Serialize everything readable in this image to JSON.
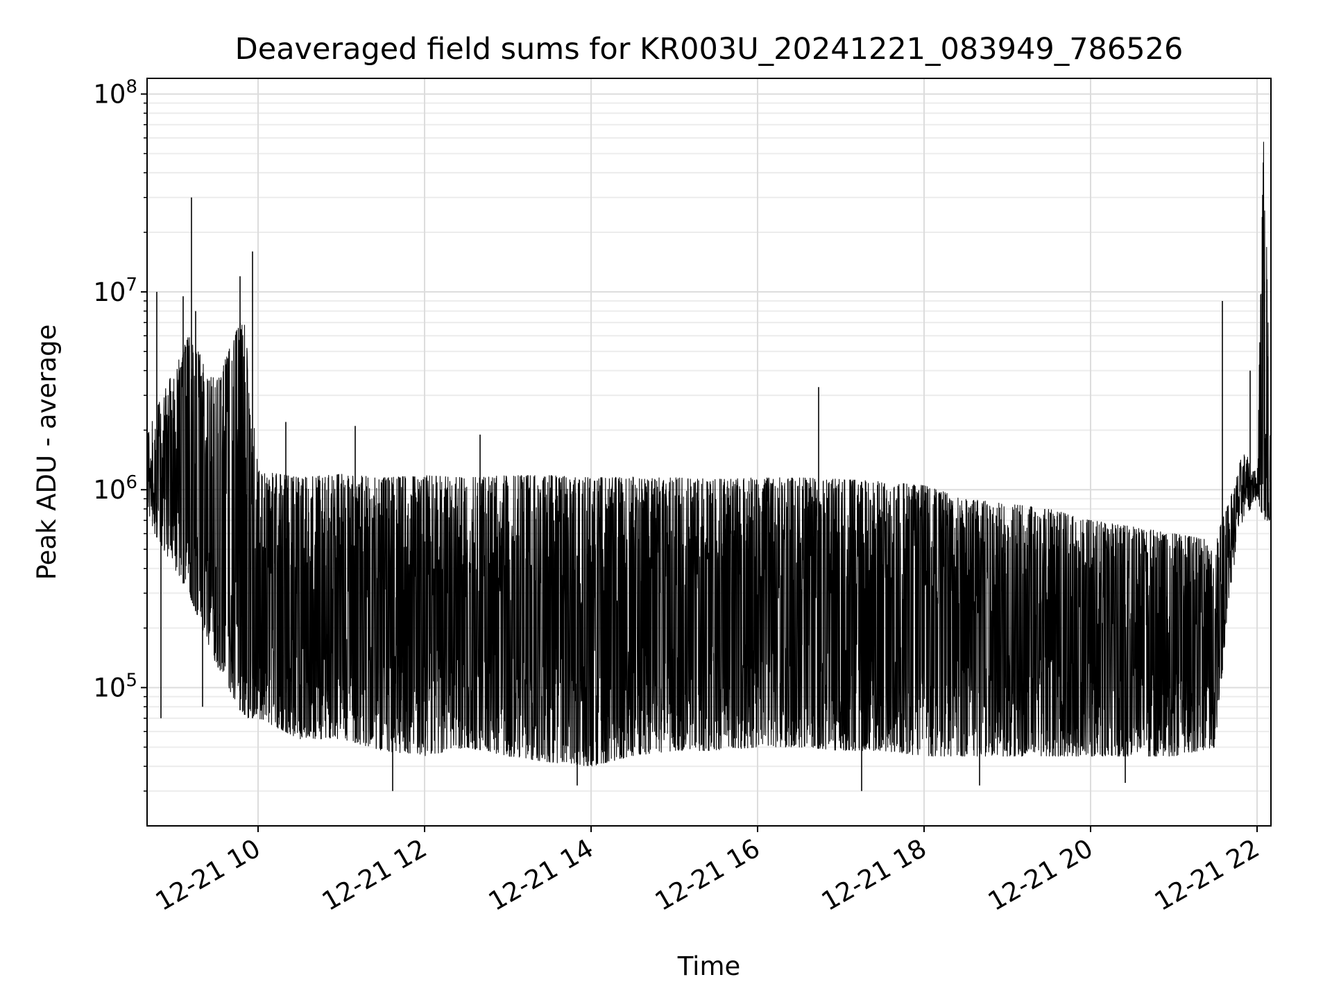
{
  "chart_data": {
    "type": "line",
    "title": "Deaveraged field sums for KR003U_20241221_083949_786526",
    "xlabel": "Time",
    "ylabel": "Peak ADU - average",
    "x_scale": "time",
    "y_scale": "log",
    "xlim": [
      "2024-12-21 08:40",
      "2024-12-21 22:10"
    ],
    "ylim": [
      20000,
      120000000
    ],
    "x_ticks": [
      {
        "label": "12-21 10",
        "value": "2024-12-21 10:00"
      },
      {
        "label": "12-21 12",
        "value": "2024-12-21 12:00"
      },
      {
        "label": "12-21 14",
        "value": "2024-12-21 14:00"
      },
      {
        "label": "12-21 16",
        "value": "2024-12-21 16:00"
      },
      {
        "label": "12-21 18",
        "value": "2024-12-21 18:00"
      },
      {
        "label": "12-21 20",
        "value": "2024-12-21 20:00"
      },
      {
        "label": "12-21 22",
        "value": "2024-12-21 22:00"
      }
    ],
    "y_ticks": [
      {
        "base": "10",
        "exp": "5",
        "value": 100000
      },
      {
        "base": "10",
        "exp": "6",
        "value": 1000000
      },
      {
        "base": "10",
        "exp": "7",
        "value": 10000000
      },
      {
        "base": "10",
        "exp": "8",
        "value": 100000000
      }
    ],
    "grid": true,
    "minor_grid": true,
    "line_color": "#000000",
    "series": [
      {
        "envelope_x": [
          "08:40",
          "09:10",
          "09:30",
          "09:50",
          "10:00",
          "10:30",
          "11:00",
          "11:30",
          "12:00",
          "12:30",
          "13:00",
          "13:30",
          "14:00",
          "14:30",
          "15:00",
          "15:30",
          "16:00",
          "16:30",
          "17:00",
          "17:30",
          "18:00",
          "18:30",
          "19:00",
          "19:30",
          "20:00",
          "20:30",
          "21:00",
          "21:30",
          "21:40",
          "21:50",
          "22:00",
          "22:05",
          "22:10"
        ],
        "y_high": [
          2000000,
          6000000,
          3500000,
          8000000,
          1250000,
          1150000,
          1200000,
          1150000,
          1180000,
          1150000,
          1180000,
          1180000,
          1150000,
          1160000,
          1150000,
          1130000,
          1150000,
          1150000,
          1130000,
          1100000,
          1050000,
          900000,
          850000,
          800000,
          700000,
          650000,
          600000,
          550000,
          900000,
          1600000,
          1200000,
          75000000,
          1500000
        ],
        "y_low": [
          700000,
          300000,
          130000,
          70000,
          70000,
          55000,
          55000,
          48000,
          45000,
          50000,
          45000,
          42000,
          40000,
          45000,
          48000,
          48000,
          50000,
          50000,
          48000,
          48000,
          45000,
          45000,
          45000,
          45000,
          45000,
          45000,
          45000,
          50000,
          300000,
          700000,
          900000,
          700000,
          700000
        ],
        "spikes": [
          {
            "x": "08:47",
            "y": 10000000
          },
          {
            "x": "09:06",
            "y": 9500000
          },
          {
            "x": "09:12",
            "y": 30000000
          },
          {
            "x": "09:15",
            "y": 8000000
          },
          {
            "x": "09:47",
            "y": 12000000
          },
          {
            "x": "09:56",
            "y": 16000000
          },
          {
            "x": "10:20",
            "y": 2200000
          },
          {
            "x": "11:10",
            "y": 2100000
          },
          {
            "x": "12:40",
            "y": 1900000
          },
          {
            "x": "16:44",
            "y": 3300000
          },
          {
            "x": "21:35",
            "y": 9000000
          },
          {
            "x": "21:55",
            "y": 4000000
          }
        ],
        "dips": [
          {
            "x": "08:50",
            "y": 70000
          },
          {
            "x": "09:20",
            "y": 80000
          },
          {
            "x": "11:37",
            "y": 30000
          },
          {
            "x": "13:50",
            "y": 32000
          },
          {
            "x": "17:15",
            "y": 30000
          },
          {
            "x": "18:40",
            "y": 32000
          },
          {
            "x": "20:25",
            "y": 33000
          }
        ]
      }
    ]
  }
}
